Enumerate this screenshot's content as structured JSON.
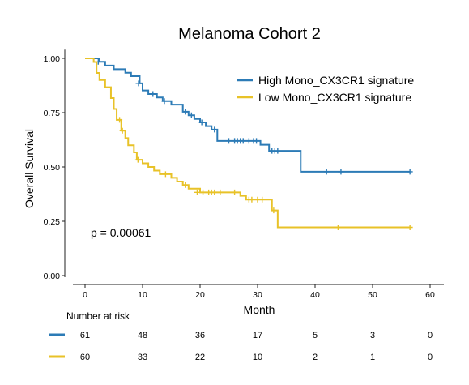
{
  "chart_data": {
    "type": "line",
    "subtype": "kaplan-meier",
    "title": "Melanoma Cohort 2",
    "xlabel": "Month",
    "ylabel": "Overall Survival",
    "xlim": [
      -2,
      60
    ],
    "ylim": [
      0,
      1
    ],
    "x_ticks": [
      "0",
      "10",
      "20",
      "30",
      "40",
      "50",
      "60"
    ],
    "y_ticks": [
      "0.00",
      "0.25",
      "0.50",
      "0.75",
      "1.00"
    ],
    "grid": false,
    "legend_position": "top-right",
    "annotation": "p = 0.00061",
    "series": [
      {
        "name": "High Mono_CX3CR1 signature",
        "color": "#2c7bb6",
        "steps": [
          [
            0,
            1.0
          ],
          [
            2.5,
            0.984
          ],
          [
            3.5,
            0.967
          ],
          [
            5,
            0.95
          ],
          [
            7,
            0.934
          ],
          [
            8,
            0.918
          ],
          [
            9.5,
            0.885
          ],
          [
            10,
            0.852
          ],
          [
            11,
            0.836
          ],
          [
            12.5,
            0.82
          ],
          [
            13.5,
            0.803
          ],
          [
            15,
            0.787
          ],
          [
            17,
            0.754
          ],
          [
            18,
            0.738
          ],
          [
            19,
            0.721
          ],
          [
            20,
            0.705
          ],
          [
            21,
            0.688
          ],
          [
            22,
            0.672
          ],
          [
            23,
            0.62
          ],
          [
            30.5,
            0.602
          ],
          [
            32,
            0.574
          ],
          [
            37.5,
            0.478
          ],
          [
            56.5,
            0.478
          ]
        ],
        "censored": [
          [
            2.3,
            0.984
          ],
          [
            9.3,
            0.885
          ],
          [
            11.8,
            0.836
          ],
          [
            13.8,
            0.803
          ],
          [
            17.5,
            0.754
          ],
          [
            18.5,
            0.738
          ],
          [
            20.3,
            0.705
          ],
          [
            22.5,
            0.672
          ],
          [
            25,
            0.62
          ],
          [
            26,
            0.62
          ],
          [
            26.5,
            0.62
          ],
          [
            27,
            0.62
          ],
          [
            27.5,
            0.62
          ],
          [
            28.5,
            0.62
          ],
          [
            29.3,
            0.62
          ],
          [
            29.8,
            0.62
          ],
          [
            32.5,
            0.574
          ],
          [
            33,
            0.574
          ],
          [
            33.5,
            0.574
          ],
          [
            42,
            0.478
          ],
          [
            44.5,
            0.478
          ],
          [
            56.5,
            0.478
          ]
        ]
      },
      {
        "name": "Low Mono_CX3CR1 signature",
        "color": "#e8c228",
        "steps": [
          [
            0,
            1.0
          ],
          [
            1.5,
            0.983
          ],
          [
            2,
            0.933
          ],
          [
            2.5,
            0.9
          ],
          [
            3.5,
            0.867
          ],
          [
            4.5,
            0.817
          ],
          [
            5,
            0.767
          ],
          [
            5.5,
            0.717
          ],
          [
            6.3,
            0.667
          ],
          [
            7,
            0.633
          ],
          [
            7.5,
            0.6
          ],
          [
            8.5,
            0.567
          ],
          [
            9,
            0.533
          ],
          [
            10,
            0.517
          ],
          [
            11,
            0.5
          ],
          [
            12,
            0.483
          ],
          [
            13,
            0.467
          ],
          [
            15,
            0.45
          ],
          [
            16,
            0.433
          ],
          [
            17,
            0.417
          ],
          [
            18,
            0.4
          ],
          [
            20,
            0.383
          ],
          [
            27,
            0.367
          ],
          [
            28,
            0.35
          ],
          [
            32.5,
            0.3
          ],
          [
            33.5,
            0.222
          ],
          [
            56.5,
            0.222
          ]
        ],
        "censored": [
          [
            6,
            0.717
          ],
          [
            6.5,
            0.667
          ],
          [
            9.2,
            0.533
          ],
          [
            14,
            0.467
          ],
          [
            17.5,
            0.417
          ],
          [
            19.5,
            0.383
          ],
          [
            20.5,
            0.383
          ],
          [
            21.5,
            0.383
          ],
          [
            22,
            0.383
          ],
          [
            22.5,
            0.383
          ],
          [
            23.5,
            0.383
          ],
          [
            26,
            0.383
          ],
          [
            28.5,
            0.35
          ],
          [
            29,
            0.35
          ],
          [
            30,
            0.35
          ],
          [
            30.8,
            0.35
          ],
          [
            32.8,
            0.3
          ],
          [
            44,
            0.222
          ],
          [
            56.5,
            0.222
          ]
        ]
      }
    ],
    "risk_table": {
      "title": "Number at risk",
      "times": [
        0,
        10,
        20,
        30,
        40,
        50,
        60
      ],
      "rows": [
        {
          "color": "#2c7bb6",
          "values": [
            "61",
            "48",
            "36",
            "17",
            "5",
            "3",
            "0"
          ]
        },
        {
          "color": "#e8c228",
          "values": [
            "60",
            "33",
            "22",
            "10",
            "2",
            "1",
            "0"
          ]
        }
      ]
    }
  }
}
